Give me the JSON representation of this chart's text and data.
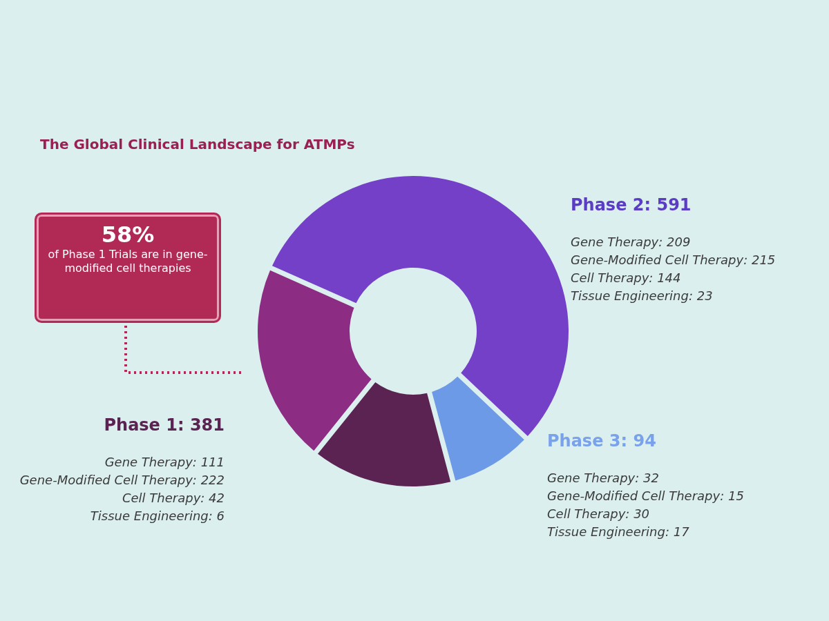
{
  "chart_data": {
    "type": "donut",
    "title": "The Global Clinical Landscape for ATMPs",
    "categories": [
      null,
      null,
      null,
      null
    ],
    "values": [
      55.4,
      8.8,
      14.9,
      20.9
    ],
    "colors": [
      "#7440c8",
      "#6d9ae6",
      "#5a2352",
      "#8c2c82"
    ],
    "annotations": [
      "Phase 2: 591",
      "Gene Therapy: 209",
      "Gene-Modified Cell Therapy: 215",
      "Cell Therapy: 144",
      "Tissue Engineering: 23",
      "Phase 3: 94",
      "Gene Therapy: 32",
      "Gene-Modified Cell Therapy: 15",
      "Cell Therapy: 30",
      "Tissue Engineering: 17",
      "Phase 1: 381",
      "Gene Therapy: 111",
      "Gene-Modified Cell Therapy: 222",
      "Cell Therapy: 42",
      "Tissue Engineering: 6",
      "58%",
      "of Phase 1 Trials are in gene-modified cell therapies"
    ]
  }
}
